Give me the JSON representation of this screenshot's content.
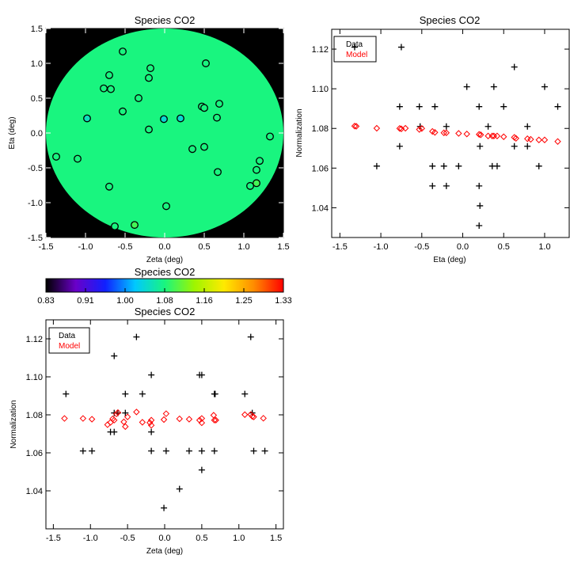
{
  "colors": {
    "data": "#000000",
    "model": "#ff0000",
    "map_fill": "#19f57f",
    "map_bg": "#000000"
  },
  "chart_data": [
    {
      "id": "map",
      "type": "scatter",
      "title": "Species CO2",
      "xlabel": "Zeta (deg)",
      "ylabel": "Eta (deg)",
      "xlim": [
        -1.5,
        1.5
      ],
      "ylim": [
        -1.5,
        1.5
      ],
      "xticks": [
        "-1.5",
        "-1.0",
        "-0.5",
        "0.0",
        "0.5",
        "1.0",
        "1.5"
      ],
      "yticks": [
        "-1.5",
        "-1.0",
        "-0.5",
        "0.0",
        "0.5",
        "1.0",
        "1.5"
      ],
      "field_radius_deg": 1.5,
      "points": [
        {
          "x": -0.53,
          "y": 1.17,
          "v": 1.08
        },
        {
          "x": -0.18,
          "y": 0.93,
          "v": 1.08
        },
        {
          "x": 0.52,
          "y": 1.0,
          "v": 1.08
        },
        {
          "x": -0.7,
          "y": 0.83,
          "v": 1.08
        },
        {
          "x": -0.2,
          "y": 0.79,
          "v": 1.08
        },
        {
          "x": -0.77,
          "y": 0.64,
          "v": 1.08
        },
        {
          "x": -0.68,
          "y": 0.63,
          "v": 1.08
        },
        {
          "x": -0.33,
          "y": 0.5,
          "v": 1.08
        },
        {
          "x": 0.69,
          "y": 0.42,
          "v": 1.08
        },
        {
          "x": 0.47,
          "y": 0.38,
          "v": 1.08
        },
        {
          "x": 0.5,
          "y": 0.36,
          "v": 1.08
        },
        {
          "x": -0.53,
          "y": 0.31,
          "v": 1.08
        },
        {
          "x": -0.98,
          "y": 0.21,
          "v": 1.05
        },
        {
          "x": -0.01,
          "y": 0.2,
          "v": 1.04
        },
        {
          "x": 0.2,
          "y": 0.21,
          "v": 1.04
        },
        {
          "x": 0.66,
          "y": 0.22,
          "v": 1.08
        },
        {
          "x": -0.2,
          "y": 0.05,
          "v": 1.08
        },
        {
          "x": 1.33,
          "y": -0.05,
          "v": 1.08
        },
        {
          "x": -1.1,
          "y": -0.37,
          "v": 1.08
        },
        {
          "x": 0.35,
          "y": -0.23,
          "v": 1.08
        },
        {
          "x": 0.5,
          "y": -0.2,
          "v": 1.08
        },
        {
          "x": 1.2,
          "y": -0.4,
          "v": 1.08
        },
        {
          "x": -1.37,
          "y": -0.34,
          "v": 1.08
        },
        {
          "x": 1.16,
          "y": -0.53,
          "v": 1.08
        },
        {
          "x": 0.67,
          "y": -0.56,
          "v": 1.08
        },
        {
          "x": -0.7,
          "y": -0.77,
          "v": 1.08
        },
        {
          "x": 1.16,
          "y": -0.72,
          "v": 1.1
        },
        {
          "x": 1.08,
          "y": -0.76,
          "v": 1.08
        },
        {
          "x": 0.02,
          "y": -1.05,
          "v": 1.08
        },
        {
          "x": -0.38,
          "y": -1.32,
          "v": 1.1
        },
        {
          "x": -0.63,
          "y": -1.34,
          "v": 1.08
        }
      ]
    },
    {
      "id": "colorbar",
      "type": "heatmap",
      "title": "Species CO2",
      "range": [
        0.83,
        1.33
      ],
      "tick_labels": [
        "0.83",
        "0.91",
        "1.00",
        "1.08",
        "1.16",
        "1.25",
        "1.33"
      ],
      "colormap": [
        "#000000",
        "#6a00c8",
        "#1020ff",
        "#00c8ff",
        "#19f57f",
        "#9ef500",
        "#ffea00",
        "#ff8c00",
        "#ff0000"
      ]
    },
    {
      "id": "eta",
      "type": "scatter",
      "title": "Species CO2",
      "xlabel": "Eta (deg)",
      "ylabel": "Normalization",
      "xlim": [
        -1.6,
        1.3
      ],
      "ylim": [
        1.025,
        1.13
      ],
      "xticks": [
        "-1.5",
        "-1.0",
        "-0.5",
        "0.0",
        "0.5",
        "1.0"
      ],
      "yticks": [
        "1.04",
        "1.06",
        "1.08",
        "1.10",
        "1.12"
      ],
      "legend": {
        "position": "top-left",
        "entries": [
          "Data",
          "Model"
        ]
      },
      "series": [
        {
          "name": "Data",
          "marker": "plus",
          "points": [
            [
              -1.32,
              1.121
            ],
            [
              -0.75,
              1.121
            ],
            [
              0.63,
              1.111
            ],
            [
              0.05,
              1.101
            ],
            [
              0.38,
              1.101
            ],
            [
              1.0,
              1.101
            ],
            [
              -0.77,
              1.091
            ],
            [
              -0.53,
              1.091
            ],
            [
              -0.34,
              1.091
            ],
            [
              0.2,
              1.091
            ],
            [
              0.5,
              1.091
            ],
            [
              1.16,
              1.091
            ],
            [
              -0.2,
              1.081
            ],
            [
              -0.52,
              1.081
            ],
            [
              0.31,
              1.081
            ],
            [
              0.79,
              1.081
            ],
            [
              -0.77,
              1.071
            ],
            [
              0.21,
              1.071
            ],
            [
              0.63,
              1.071
            ],
            [
              0.79,
              1.071
            ],
            [
              -1.05,
              1.061
            ],
            [
              -0.37,
              1.061
            ],
            [
              -0.23,
              1.061
            ],
            [
              -0.05,
              1.061
            ],
            [
              0.36,
              1.061
            ],
            [
              0.42,
              1.061
            ],
            [
              0.93,
              1.061
            ],
            [
              -0.37,
              1.051
            ],
            [
              -0.2,
              1.051
            ],
            [
              0.2,
              1.051
            ],
            [
              0.21,
              1.041
            ],
            [
              0.2,
              1.031
            ]
          ]
        },
        {
          "name": "Model",
          "marker": "diamond",
          "points": [
            [
              -1.32,
              1.0812
            ],
            [
              -1.3,
              1.0811
            ],
            [
              -1.05,
              1.0801
            ],
            [
              -0.77,
              1.08
            ],
            [
              -0.75,
              1.0798
            ],
            [
              -0.7,
              1.0801
            ],
            [
              -0.53,
              1.0795
            ],
            [
              -0.5,
              1.08
            ],
            [
              -0.37,
              1.0785
            ],
            [
              -0.34,
              1.078
            ],
            [
              -0.23,
              1.0778
            ],
            [
              -0.2,
              1.0778
            ],
            [
              -0.05,
              1.0775
            ],
            [
              0.05,
              1.0772
            ],
            [
              0.2,
              1.077
            ],
            [
              0.22,
              1.0768
            ],
            [
              0.31,
              1.0762
            ],
            [
              0.36,
              1.0762
            ],
            [
              0.38,
              1.0762
            ],
            [
              0.42,
              1.0762
            ],
            [
              0.5,
              1.0758
            ],
            [
              0.63,
              1.0755
            ],
            [
              0.65,
              1.075
            ],
            [
              0.79,
              1.0748
            ],
            [
              0.83,
              1.0745
            ],
            [
              0.93,
              1.0742
            ],
            [
              1.0,
              1.0742
            ],
            [
              1.16,
              1.0734
            ]
          ]
        }
      ]
    },
    {
      "id": "zeta",
      "type": "scatter",
      "title": "Species CO2",
      "xlabel": "Zeta (deg)",
      "ylabel": "Normalization",
      "xlim": [
        -1.6,
        1.6
      ],
      "ylim": [
        1.02,
        1.13
      ],
      "xticks": [
        "-1.5",
        "-1.0",
        "-0.5",
        "0.0",
        "0.5",
        "1.0",
        "1.5"
      ],
      "yticks": [
        "1.04",
        "1.06",
        "1.08",
        "1.10",
        "1.12"
      ],
      "legend": {
        "position": "top-left",
        "entries": [
          "Data",
          "Model"
        ]
      },
      "series": [
        {
          "name": "Data",
          "marker": "plus",
          "points": [
            [
              -0.38,
              1.121
            ],
            [
              1.16,
              1.121
            ],
            [
              -0.68,
              1.111
            ],
            [
              -0.18,
              1.101
            ],
            [
              0.47,
              1.101
            ],
            [
              0.5,
              1.101
            ],
            [
              -1.33,
              1.091
            ],
            [
              -0.53,
              1.091
            ],
            [
              -0.3,
              1.091
            ],
            [
              0.67,
              1.091
            ],
            [
              0.68,
              1.091
            ],
            [
              1.08,
              1.091
            ],
            [
              -0.68,
              1.081
            ],
            [
              -0.63,
              1.081
            ],
            [
              -0.53,
              1.081
            ],
            [
              1.18,
              1.081
            ],
            [
              -0.73,
              1.071
            ],
            [
              -0.68,
              1.071
            ],
            [
              -0.18,
              1.071
            ],
            [
              -1.1,
              1.061
            ],
            [
              -0.98,
              1.061
            ],
            [
              -0.18,
              1.061
            ],
            [
              0.02,
              1.061
            ],
            [
              0.33,
              1.061
            ],
            [
              0.5,
              1.061
            ],
            [
              0.67,
              1.061
            ],
            [
              1.2,
              1.061
            ],
            [
              1.35,
              1.061
            ],
            [
              0.5,
              1.051
            ],
            [
              0.2,
              1.041
            ],
            [
              -0.01,
              1.031
            ]
          ]
        },
        {
          "name": "Model",
          "marker": "diamond",
          "points": [
            [
              -1.35,
              1.0781
            ],
            [
              -1.1,
              1.0781
            ],
            [
              -0.98,
              1.0777
            ],
            [
              -0.77,
              1.0748
            ],
            [
              -0.73,
              1.076
            ],
            [
              -0.7,
              1.0779
            ],
            [
              -0.68,
              1.0772
            ],
            [
              -0.65,
              1.0805
            ],
            [
              -0.63,
              1.0812
            ],
            [
              -0.55,
              1.0763
            ],
            [
              -0.53,
              1.0738
            ],
            [
              -0.5,
              1.0789
            ],
            [
              -0.38,
              1.0815
            ],
            [
              -0.3,
              1.0761
            ],
            [
              -0.18,
              1.0745
            ],
            [
              -0.18,
              1.0772
            ],
            [
              -0.2,
              1.0759
            ],
            [
              -0.01,
              1.0775
            ],
            [
              0.02,
              1.0806
            ],
            [
              0.2,
              1.0779
            ],
            [
              0.33,
              1.0777
            ],
            [
              0.47,
              1.0772
            ],
            [
              0.5,
              1.0758
            ],
            [
              0.5,
              1.0781
            ],
            [
              0.66,
              1.0798
            ],
            [
              0.67,
              1.0772
            ],
            [
              0.69,
              1.0772
            ],
            [
              1.08,
              1.0801
            ],
            [
              1.16,
              1.0802
            ],
            [
              1.18,
              1.0792
            ],
            [
              1.2,
              1.0789
            ],
            [
              1.33,
              1.0782
            ]
          ]
        }
      ]
    }
  ]
}
